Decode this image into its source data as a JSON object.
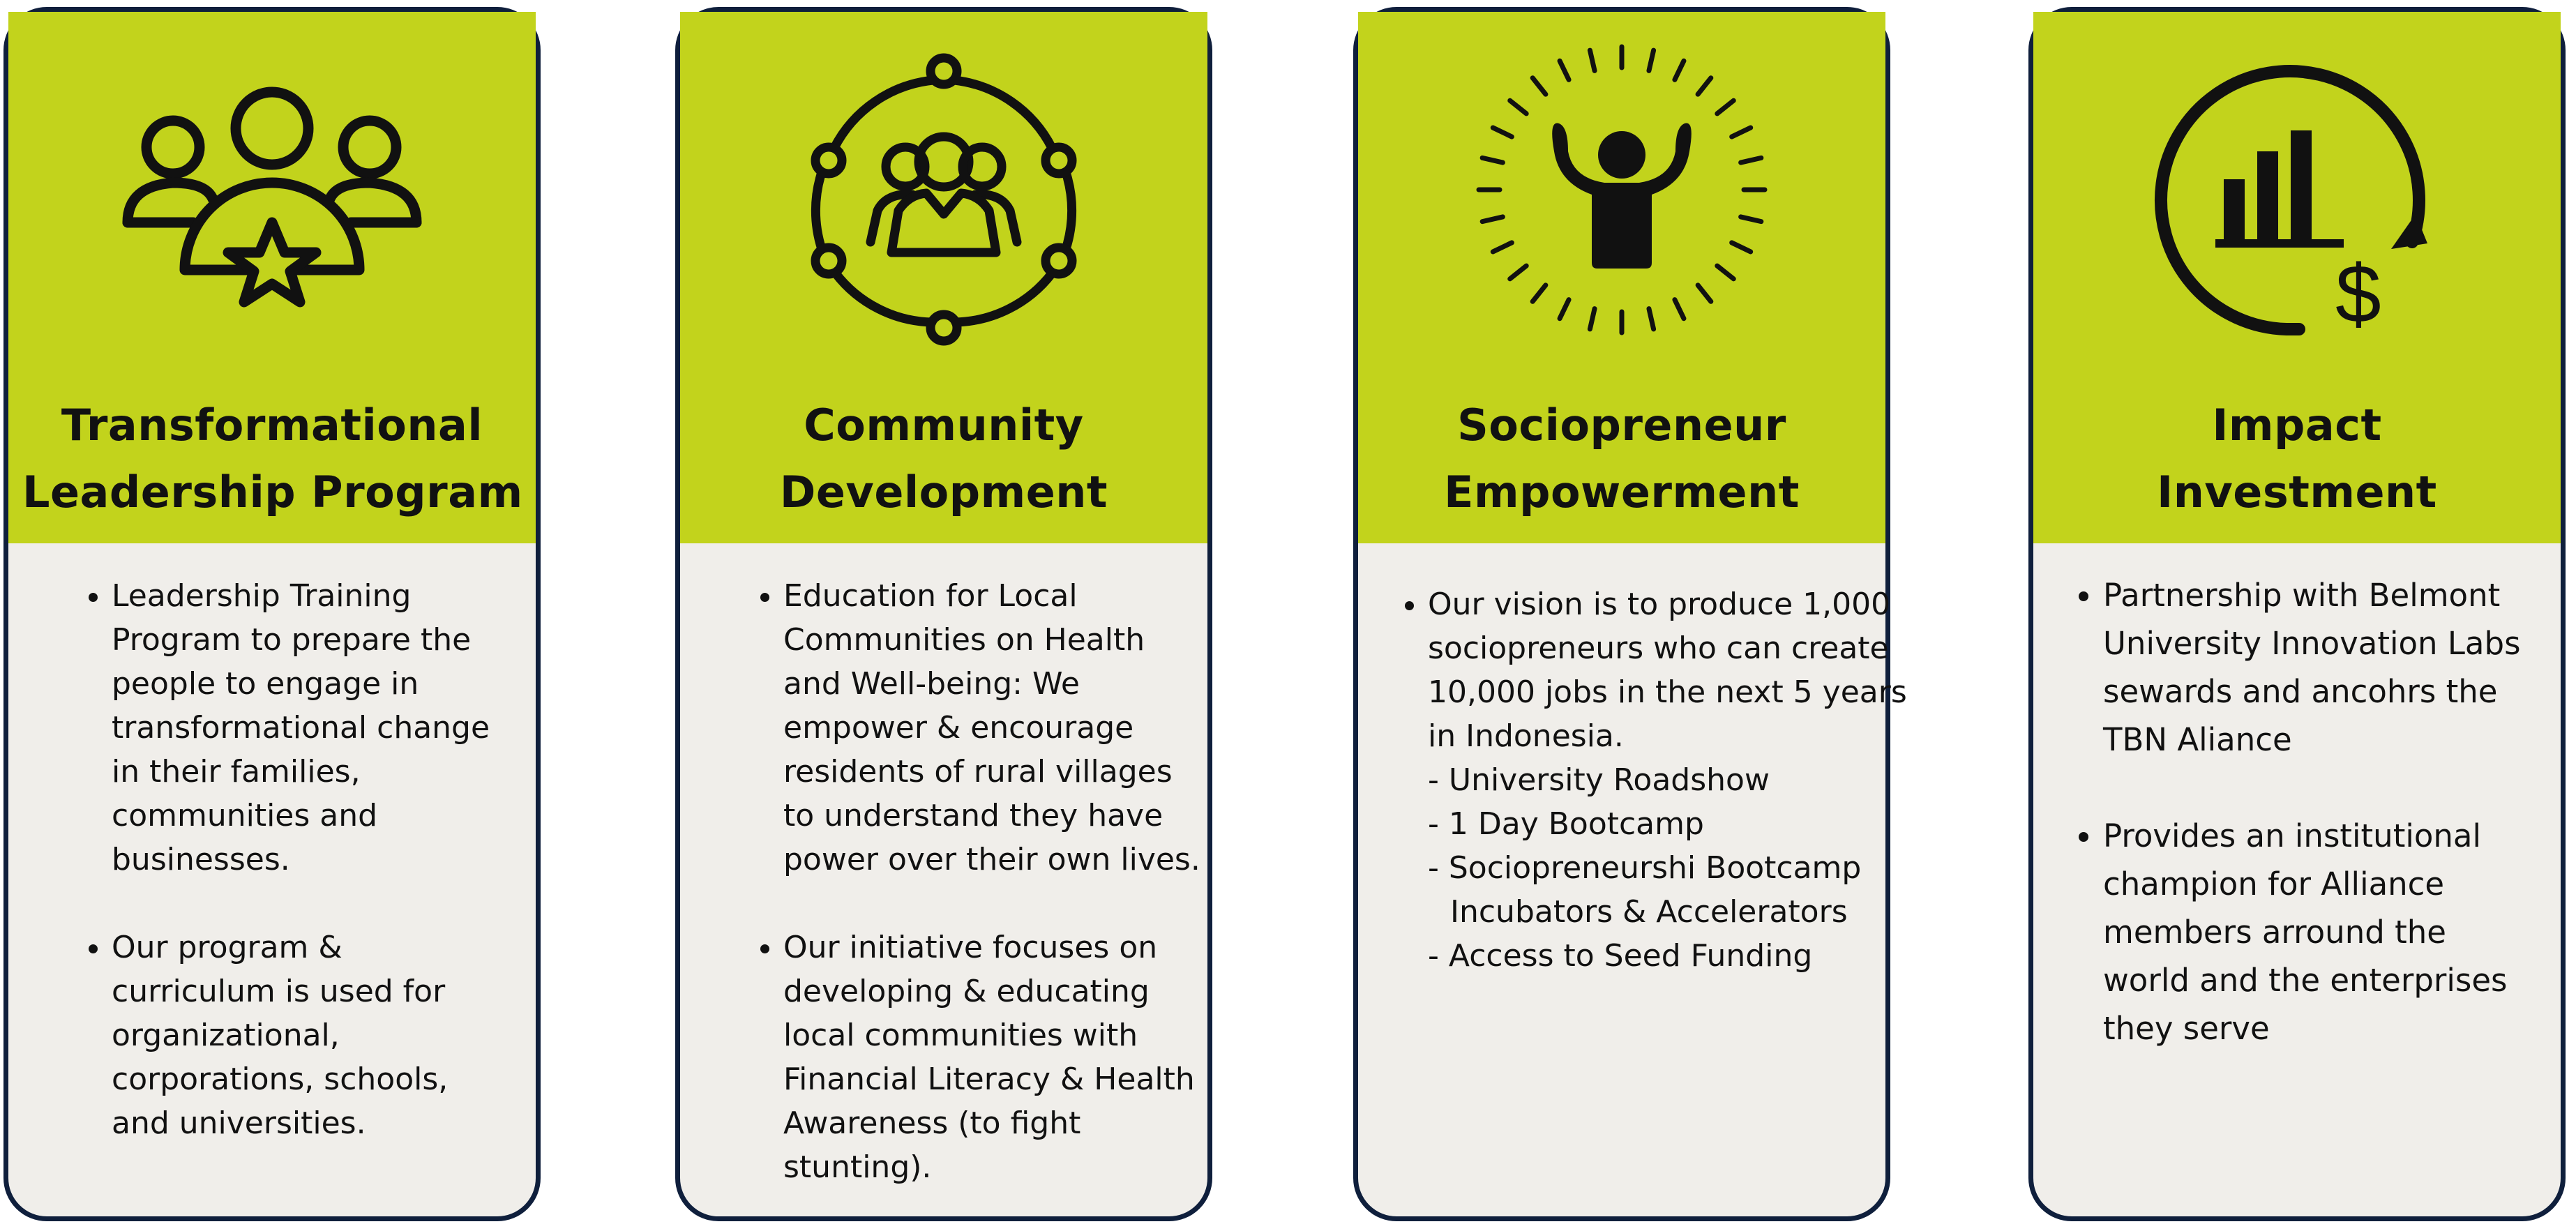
{
  "colors": {
    "header": "#c2d31c",
    "body": "#f0eeea",
    "border": "#0f1f3c",
    "icon": "#111111"
  },
  "cards": [
    {
      "icon": "team-star-icon",
      "title": [
        "Transformational",
        "Leadership Program"
      ],
      "bullets": [
        [
          "Leadership Training",
          "Program to prepare the",
          "people to engage in",
          "transformational change",
          "in their families,",
          "communities and",
          "businesses."
        ],
        [
          "Our program &",
          "curriculum is used for",
          "organizational,",
          "corporations, schools,",
          "and universities."
        ]
      ]
    },
    {
      "icon": "community-network-icon",
      "title": [
        "Community",
        "Development"
      ],
      "bullets": [
        [
          "Education for Local",
          "Communities on Health",
          "and Well-being: We",
          "empower & encourage",
          "residents of rural villages",
          "to understand they have",
          "power over their own lives."
        ],
        [
          "Our initiative focuses on",
          "developing & educating",
          "local communities with",
          "Financial Literacy & Health",
          "Awareness (to fight",
          "stunting)."
        ]
      ]
    },
    {
      "icon": "empowered-person-icon",
      "title": [
        "Sociopreneur",
        "Empowerment"
      ],
      "bullets": [
        [
          "Our vision is to produce 1,000",
          "sociopreneurs who can create",
          "10,000 jobs in the next 5 years",
          "in Indonesia."
        ]
      ],
      "sublist": [
        "- University Roadshow",
        "- 1 Day Bootcamp",
        "- Sociopreneurshi Bootcamp",
        "Incubators & Accelerators",
        "- Access to Seed Funding"
      ]
    },
    {
      "icon": "investment-growth-icon",
      "title": [
        "Impact",
        "Investment"
      ],
      "bullets": [
        [
          "Partnership with Belmont",
          "University Innovation Labs",
          "sewards and ancohrs the",
          "TBN Aliance"
        ],
        [
          "Provides an institutional",
          "champion for Alliance",
          "members arround the",
          "world and the enterprises",
          "they serve"
        ]
      ]
    }
  ]
}
